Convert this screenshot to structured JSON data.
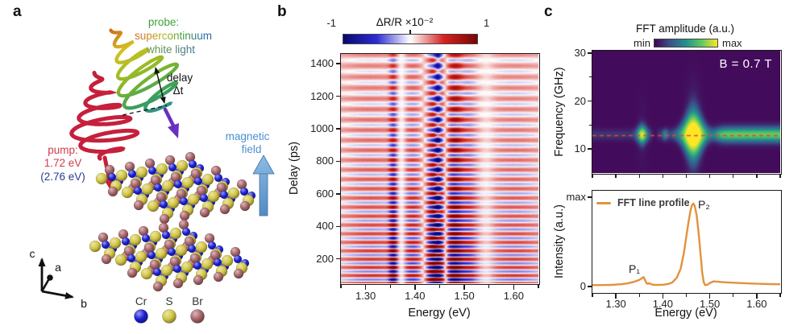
{
  "figure": {
    "panel_a_label": "a",
    "panel_b_label": "b",
    "panel_c_label": "c"
  },
  "panel_a": {
    "probe_title": "probe:",
    "probe_line2": "supercontinuum",
    "probe_line3": "white light",
    "delay_label": "delay",
    "delay_symbol": "Δt",
    "pump_title": "pump:",
    "pump_energy": "1.72 eV",
    "pump_energy_alt": "(2.76 eV)",
    "magnetic_line1": "magnetic",
    "magnetic_line2": "field",
    "axis_c": "c",
    "axis_a": "a",
    "axis_b": "b",
    "atoms": [
      {
        "symbol": "Cr",
        "color": "#1b1fd4"
      },
      {
        "symbol": "S",
        "color": "#d3c643"
      },
      {
        "symbol": "Br",
        "color": "#a86468"
      }
    ],
    "colors": {
      "probe_text": "#3fa339",
      "pump_text": "#d03b4b",
      "pump_alt_text": "#2c3a90",
      "magnetic_text": "#4a8fd0"
    }
  },
  "chart_data": [
    {
      "id": "delay-energy-map",
      "type": "heatmap",
      "title": "ΔR/R ×10⁻²",
      "colorbar": {
        "min_label": "-1",
        "max_label": "1",
        "colors": [
          "#08086e",
          "#2d2dd7",
          "#ffffff",
          "#d62320",
          "#7a0404"
        ]
      },
      "xlabel": "Energy (eV)",
      "ylabel": "Delay (ps)",
      "xlim": [
        1.25,
        1.65
      ],
      "ylim_ps": [
        50,
        1460
      ],
      "xticks": [
        1.3,
        1.4,
        1.5,
        1.6
      ],
      "xtick_labels": [
        "1.30",
        "1.40",
        "1.50",
        "1.60"
      ],
      "xminor_step": 0.05,
      "yticks": [
        200,
        400,
        600,
        800,
        1000,
        1200,
        1400
      ],
      "signal_model": {
        "background_level": 0.1,
        "oscillation_period_ps_start": 48,
        "oscillation_chirp": 0.015,
        "decay_ps": 1400,
        "amplitude_features": [
          {
            "center_ev": 1.31,
            "sigma_ev": 0.05,
            "amp": 0.3
          },
          {
            "center_ev": 1.356,
            "sigma_ev": 0.006,
            "amp": 0.6
          },
          {
            "center_ev": 1.4,
            "sigma_ev": 0.02,
            "amp": 0.4
          },
          {
            "center_ev": 1.445,
            "sigma_ev": 0.017,
            "amp": -1.15
          },
          {
            "center_ev": 1.475,
            "sigma_ev": 0.015,
            "amp": 1.0
          },
          {
            "center_ev": 1.51,
            "sigma_ev": 0.013,
            "amp": 0.35
          },
          {
            "center_ev": 1.6,
            "sigma_ev": 0.05,
            "amp": 0.3
          }
        ],
        "static_blue_line_ev": 1.4465,
        "white_gap_ev": [
          1.373,
          1.545
        ]
      }
    },
    {
      "id": "fft-map",
      "type": "heatmap",
      "title": "FFT amplitude (a.u.)",
      "colorbar": {
        "min_label": "min",
        "max_label": "max",
        "colors": [
          "#440154",
          "#3b528b",
          "#21918c",
          "#5ec962",
          "#fde725"
        ]
      },
      "ylabel": "Frequency (GHz)",
      "annotation": "B = 0.7 T",
      "xlim": [
        1.25,
        1.65
      ],
      "ylim_ghz": [
        5,
        30.5
      ],
      "yticks": [
        10,
        20,
        30
      ],
      "yminor": [
        15,
        25
      ],
      "xminor_step": 0.05,
      "band_frequency_ghz": 13,
      "dashed_line_ghz": 12.8,
      "dashed_line_color": "#e8432a",
      "features": [
        {
          "center_ev": 1.356,
          "energy_sigma_ev": 0.008,
          "amp": 0.78,
          "freq_sigma_ghz": 1.3
        },
        {
          "center_ev": 1.405,
          "energy_sigma_ev": 0.0045,
          "amp": 0.3,
          "freq_sigma_ghz": 0.9
        },
        {
          "center_ev": 1.465,
          "energy_sigma_ev": 0.021,
          "amp": 1.0,
          "freq_sigma_ghz": 3.3
        },
        {
          "band_from_ev": 1.52,
          "band_to_ev": 1.65,
          "amp": 0.6,
          "freq_sigma_ghz": 1.05
        }
      ],
      "baseline_band_amp": 0.13
    },
    {
      "id": "fft-line-profile",
      "type": "line",
      "legend": "FFT line profile",
      "line_color": "#e2923c",
      "xlabel": "Energy (eV)",
      "ylabel": "Intensity (a.u.)",
      "ytick_labels": [
        "max",
        "0"
      ],
      "xlim": [
        1.25,
        1.65
      ],
      "xticks": [
        1.3,
        1.4,
        1.5,
        1.6
      ],
      "xtick_labels": [
        "1.30",
        "1.40",
        "1.50",
        "1.60"
      ],
      "xminor_step": 0.05,
      "peaks": [
        {
          "label": "P₁",
          "energy_ev": 1.358
        },
        {
          "label": "P₂",
          "energy_ev": 1.465
        }
      ],
      "x": [
        1.25,
        1.27,
        1.29,
        1.31,
        1.325,
        1.34,
        1.35,
        1.356,
        1.359,
        1.362,
        1.365,
        1.368,
        1.371,
        1.374,
        1.38,
        1.39,
        1.4,
        1.41,
        1.42,
        1.43,
        1.438,
        1.445,
        1.45,
        1.455,
        1.459,
        1.462,
        1.465,
        1.468,
        1.472,
        1.476,
        1.48,
        1.484,
        1.487,
        1.49,
        1.495,
        1.5,
        1.508,
        1.515,
        1.53,
        1.55,
        1.57,
        1.59,
        1.61,
        1.63,
        1.65
      ],
      "y": [
        0.015,
        0.016,
        0.018,
        0.025,
        0.035,
        0.055,
        0.075,
        0.095,
        0.105,
        0.075,
        0.04,
        0.03,
        0.038,
        0.028,
        0.02,
        0.018,
        0.02,
        0.026,
        0.045,
        0.1,
        0.2,
        0.38,
        0.56,
        0.73,
        0.85,
        0.91,
        0.93,
        0.9,
        0.8,
        0.62,
        0.38,
        0.15,
        0.05,
        0.015,
        0.02,
        0.04,
        0.058,
        0.055,
        0.048,
        0.042,
        0.038,
        0.033,
        0.03,
        0.027,
        0.025
      ]
    }
  ]
}
